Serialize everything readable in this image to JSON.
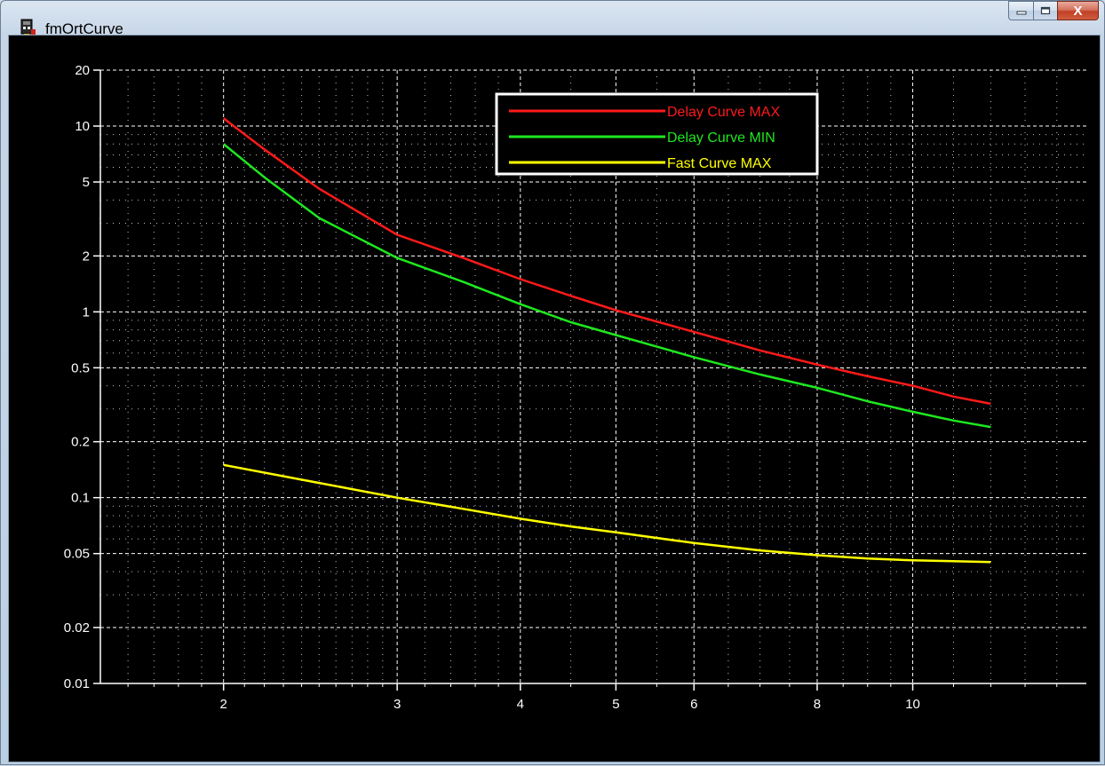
{
  "window": {
    "title": "fmOrtCurve",
    "close_glyph": "X",
    "minimize_icon": "minimize-icon",
    "maximize_icon": "maximize-icon",
    "app_icon": "app-icon"
  },
  "colors": {
    "background": "#000000",
    "grid": "#ffffff",
    "delay_max": "#ff1a1a",
    "delay_min": "#1ee81e",
    "fast_max": "#ffff00"
  },
  "chart_data": {
    "type": "line",
    "xscale": "log",
    "yscale": "log",
    "xlim": [
      1.5,
      15
    ],
    "ylim": [
      0.01,
      20
    ],
    "grid": true,
    "legend_position": "top-center",
    "x_ticks": [
      2,
      3,
      4,
      5,
      6,
      8,
      10
    ],
    "y_ticks": [
      0.01,
      0.02,
      0.05,
      0.1,
      0.2,
      0.5,
      1,
      2,
      5,
      10,
      20
    ],
    "series": [
      {
        "name": "Delay Curve MAX",
        "color": "#ff1a1a",
        "x": [
          2,
          2.2,
          2.5,
          3,
          3.5,
          4,
          4.5,
          5,
          6,
          7,
          8,
          9,
          10,
          11,
          12
        ],
        "y": [
          11,
          7.5,
          4.6,
          2.6,
          1.95,
          1.5,
          1.22,
          1.02,
          0.78,
          0.62,
          0.52,
          0.45,
          0.4,
          0.35,
          0.32
        ]
      },
      {
        "name": "Delay Curve MIN",
        "color": "#1ee81e",
        "x": [
          2,
          2.2,
          2.5,
          3,
          3.5,
          4,
          4.5,
          5,
          6,
          7,
          8,
          9,
          10,
          11,
          12
        ],
        "y": [
          8,
          5.3,
          3.2,
          1.95,
          1.45,
          1.1,
          0.88,
          0.75,
          0.57,
          0.46,
          0.39,
          0.33,
          0.29,
          0.26,
          0.24
        ]
      },
      {
        "name": "Fast Curve MAX",
        "color": "#ffff00",
        "x": [
          2,
          2.5,
          3,
          3.5,
          4,
          4.5,
          5,
          6,
          7,
          8,
          9,
          10,
          11,
          12
        ],
        "y": [
          0.15,
          0.12,
          0.1,
          0.087,
          0.077,
          0.07,
          0.065,
          0.057,
          0.052,
          0.049,
          0.047,
          0.046,
          0.0455,
          0.045
        ]
      }
    ]
  }
}
